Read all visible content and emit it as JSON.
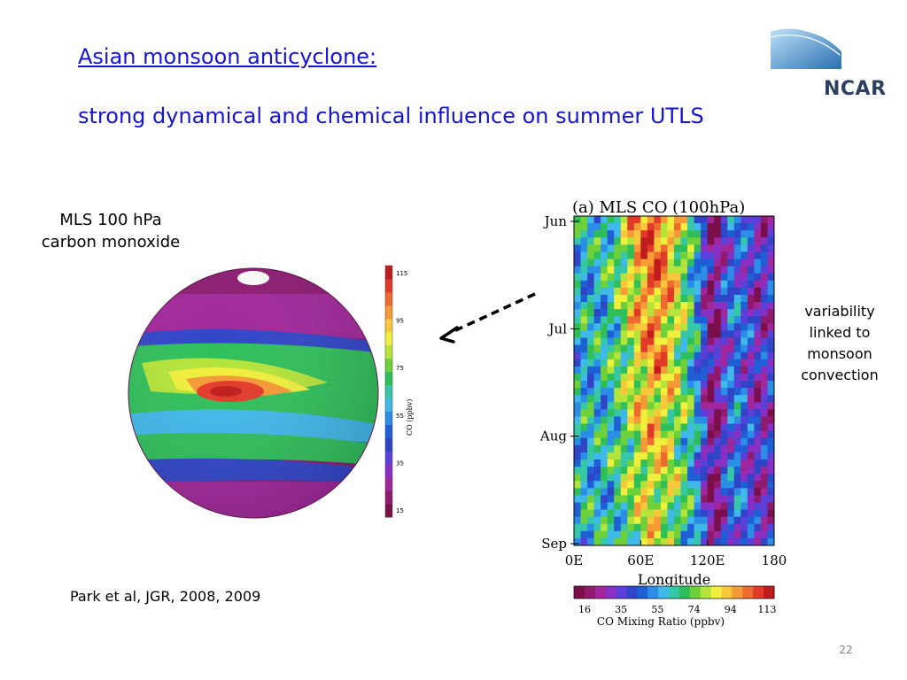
{
  "slide": {
    "title": "Asian monsoon anticyclone:",
    "subtitle": "strong dynamical and chemical influence on summer UTLS",
    "left_label_lines": [
      "MLS 100 hPa",
      "carbon monoxide"
    ],
    "right_label_lines": [
      "variability",
      "linked to",
      "monsoon",
      "convection"
    ],
    "citation": "Park et al, JGR, 2008, 2009",
    "page_number": "22"
  },
  "logo": {
    "text": "NCAR"
  },
  "globe_figure": {
    "colorbar_ticks": [
      "115",
      "95",
      "75",
      "55",
      "35",
      "15"
    ],
    "colorbar_label": "CO (ppbv)"
  },
  "hovmoller_figure": {
    "title": "(a) MLS CO (100hPa)",
    "y_ticks": [
      "Jun",
      "Jul",
      "Aug",
      "Sep"
    ],
    "x_ticks": [
      "0E",
      "60E",
      "120E",
      "180"
    ],
    "x_label": "Longitude",
    "colorbar_ticks": [
      "16",
      "35",
      "55",
      "74",
      "94",
      "113"
    ],
    "colorbar_label": "CO Mixing Ratio (ppbv)"
  },
  "colors": {
    "title_blue": "#1414d8",
    "scale": [
      "#7a0f4a",
      "#8f1a6e",
      "#a1269b",
      "#8a2fc4",
      "#5a3fd8",
      "#3044c8",
      "#1e5fd6",
      "#2a8ee6",
      "#3fb8ea",
      "#35c7a7",
      "#2fbf5a",
      "#6fd13a",
      "#b4e43a",
      "#f0ef3c",
      "#f8c83a",
      "#f59a36",
      "#ee6a2f",
      "#e23a28",
      "#c01c1c"
    ]
  }
}
